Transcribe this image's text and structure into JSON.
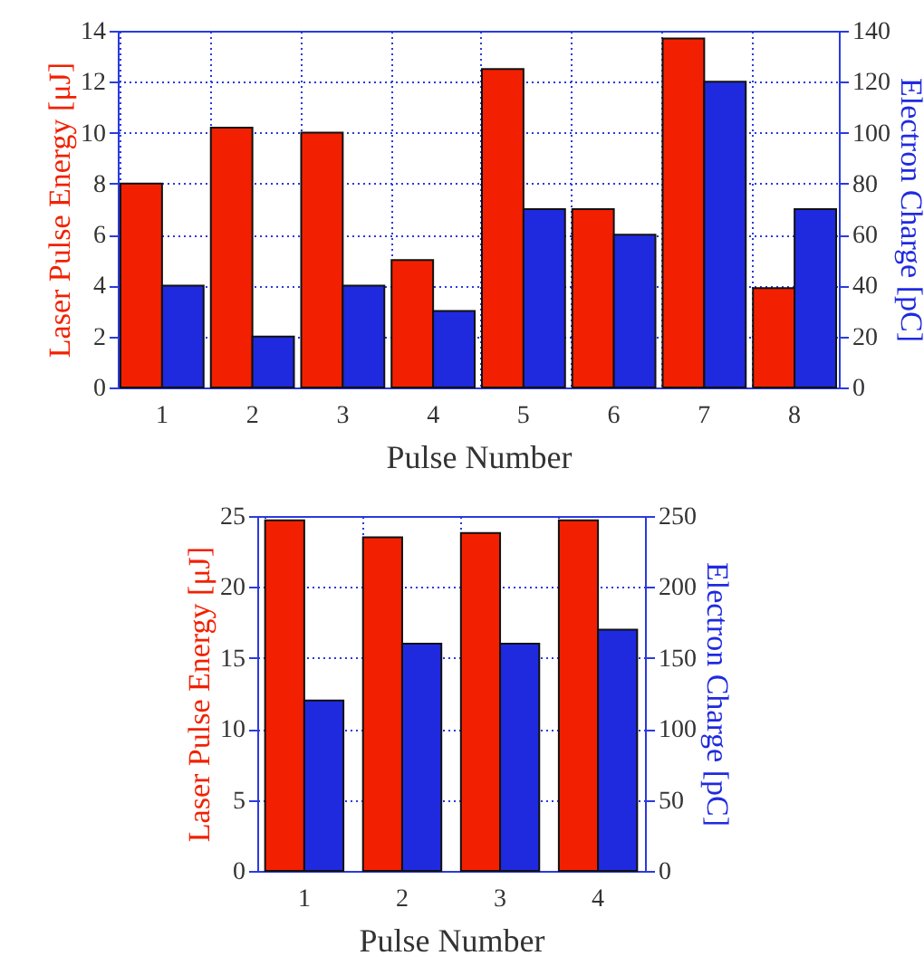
{
  "chart_data": [
    {
      "type": "bar",
      "xlabel": "Pulse Number",
      "ylabel": "Laser Pulse Energy [μJ]",
      "y2label": "Electron Charge [pC]",
      "categories": [
        "1",
        "2",
        "3",
        "4",
        "5",
        "6",
        "7",
        "8"
      ],
      "series": [
        {
          "color": "#f22000",
          "values": [
            8,
            10.2,
            10,
            5,
            12.5,
            7,
            13.7,
            3.9
          ]
        },
        {
          "color": "#1f2adf",
          "values": [
            40,
            20,
            40,
            30,
            70,
            60,
            120,
            70
          ],
          "axis": "y2"
        }
      ],
      "ylim": [
        0,
        14
      ],
      "yticks": [
        0,
        2,
        4,
        6,
        8,
        10,
        12,
        14
      ],
      "y2lim": [
        0,
        140
      ],
      "y2ticks": [
        0,
        20,
        40,
        60,
        80,
        100,
        120,
        140
      ],
      "grid": true
    },
    {
      "type": "bar",
      "xlabel": "Pulse Number",
      "ylabel": "Laser Pulse Energy [μJ]",
      "y2label": "Electron Charge [pC]",
      "categories": [
        "1",
        "2",
        "3",
        "4"
      ],
      "series": [
        {
          "color": "#f22000",
          "values": [
            24.7,
            23.5,
            23.8,
            24.7
          ]
        },
        {
          "color": "#1f2adf",
          "values": [
            120,
            160,
            160,
            170
          ],
          "axis": "y2"
        }
      ],
      "ylim": [
        0,
        25
      ],
      "yticks": [
        0,
        5,
        10,
        15,
        20,
        25
      ],
      "y2lim": [
        0,
        250
      ],
      "y2ticks": [
        0,
        50,
        100,
        150,
        200,
        250
      ],
      "grid": true
    }
  ]
}
